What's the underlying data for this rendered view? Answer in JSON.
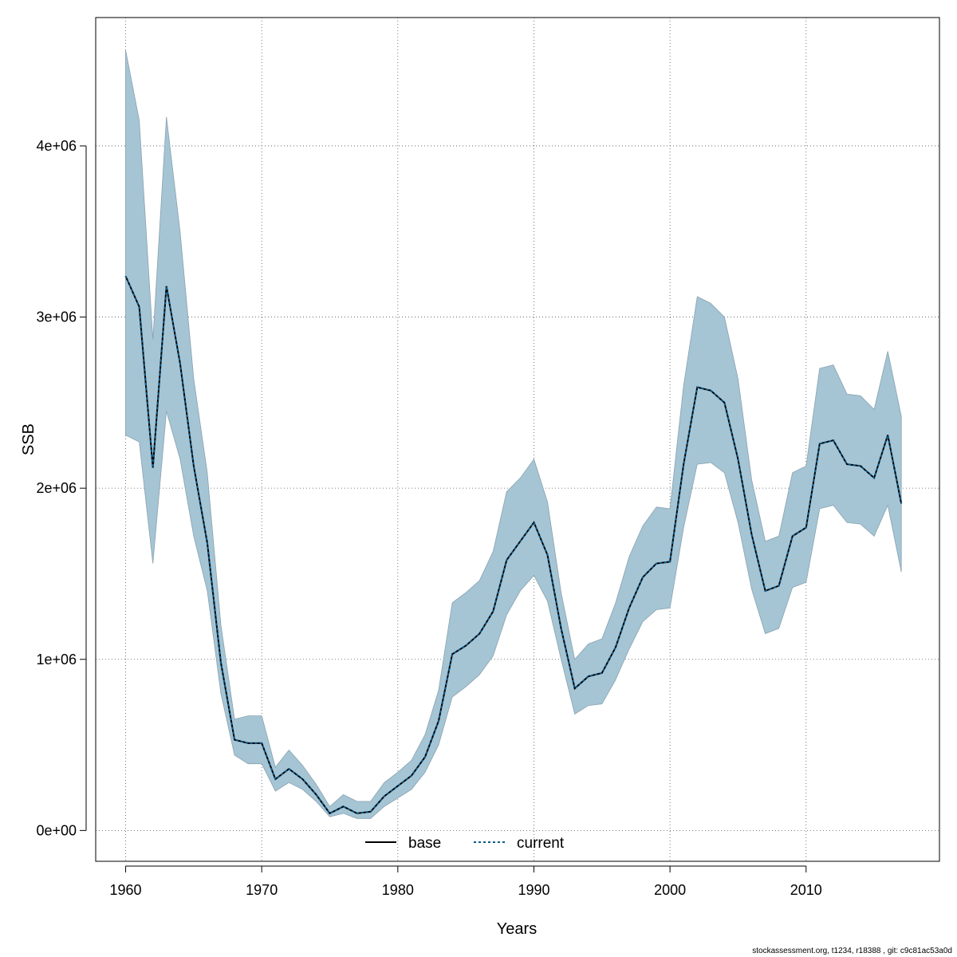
{
  "chart_data": {
    "type": "area",
    "title": "",
    "xlabel": "Years",
    "ylabel": "SSB",
    "xlim": [
      1957.8,
      1919.8
    ],
    "ylim": [
      -180000,
      4750000
    ],
    "x_ticks": [
      1960,
      1970,
      1980,
      1990,
      2000,
      2010
    ],
    "x_tick_labels": [
      "1960",
      "1970",
      "1980",
      "1990",
      "2000",
      "2010"
    ],
    "y_ticks": [
      0,
      1000000,
      2000000,
      3000000,
      4000000
    ],
    "y_tick_labels": [
      "0e+00",
      "1e+06",
      "2e+06",
      "3e+06",
      "4e+06"
    ],
    "grid": true,
    "legend_position": "bottom-center",
    "band_color": "#a5c4d4",
    "band_edge_color": "#8aa3b0",
    "x": [
      1960,
      1961,
      1962,
      1963,
      1964,
      1965,
      1966,
      1967,
      1968,
      1969,
      1970,
      1971,
      1972,
      1973,
      1974,
      1975,
      1976,
      1977,
      1978,
      1979,
      1980,
      1981,
      1982,
      1983,
      1984,
      1985,
      1986,
      1987,
      1988,
      1989,
      1990,
      1991,
      1992,
      1993,
      1994,
      1995,
      1996,
      1997,
      1998,
      1999,
      2000,
      2001,
      2002,
      2003,
      2004,
      2005,
      2006,
      2007,
      2008,
      2009,
      2010,
      2011,
      2012,
      2013,
      2014,
      2015,
      2016,
      2017
    ],
    "upper": [
      4560000,
      4150000,
      2870000,
      4170000,
      3500000,
      2640000,
      2090000,
      1200000,
      650000,
      670000,
      670000,
      370000,
      470000,
      380000,
      270000,
      140000,
      210000,
      170000,
      170000,
      280000,
      340000,
      410000,
      560000,
      820000,
      1330000,
      1390000,
      1460000,
      1630000,
      1980000,
      2060000,
      2170000,
      1920000,
      1390000,
      1000000,
      1090000,
      1120000,
      1330000,
      1600000,
      1780000,
      1890000,
      1880000,
      2600000,
      3120000,
      3080000,
      3000000,
      2640000,
      2050000,
      1690000,
      1720000,
      2090000,
      2130000,
      2700000,
      2720000,
      2550000,
      2540000,
      2460000,
      2800000,
      2420000
    ],
    "lower": [
      2310000,
      2270000,
      1560000,
      2450000,
      2170000,
      1720000,
      1400000,
      800000,
      440000,
      390000,
      390000,
      230000,
      280000,
      240000,
      170000,
      80000,
      100000,
      70000,
      70000,
      140000,
      190000,
      240000,
      340000,
      500000,
      780000,
      840000,
      910000,
      1020000,
      1260000,
      1400000,
      1490000,
      1340000,
      1000000,
      680000,
      730000,
      740000,
      880000,
      1060000,
      1220000,
      1290000,
      1300000,
      1770000,
      2140000,
      2150000,
      2090000,
      1800000,
      1410000,
      1150000,
      1180000,
      1420000,
      1450000,
      1880000,
      1900000,
      1800000,
      1790000,
      1720000,
      1900000,
      1510000
    ],
    "series": [
      {
        "name": "base",
        "line_style": "solid",
        "color": "#000000",
        "values": [
          3240000,
          3060000,
          2120000,
          3180000,
          2730000,
          2130000,
          1680000,
          980000,
          530000,
          510000,
          510000,
          300000,
          360000,
          300000,
          210000,
          100000,
          140000,
          100000,
          110000,
          200000,
          260000,
          320000,
          430000,
          640000,
          1030000,
          1080000,
          1150000,
          1280000,
          1580000,
          1690000,
          1800000,
          1610000,
          1180000,
          830000,
          900000,
          920000,
          1070000,
          1300000,
          1480000,
          1560000,
          1570000,
          2140000,
          2590000,
          2570000,
          2500000,
          2170000,
          1730000,
          1400000,
          1430000,
          1720000,
          1770000,
          2260000,
          2280000,
          2140000,
          2130000,
          2060000,
          2310000,
          1910000
        ]
      },
      {
        "name": "current",
        "line_style": "dotted",
        "color": "#0b5a8a",
        "values": [
          3240000,
          3060000,
          2120000,
          3180000,
          2730000,
          2130000,
          1680000,
          980000,
          530000,
          510000,
          510000,
          300000,
          360000,
          300000,
          210000,
          100000,
          140000,
          100000,
          110000,
          200000,
          260000,
          320000,
          430000,
          640000,
          1030000,
          1080000,
          1150000,
          1280000,
          1580000,
          1690000,
          1800000,
          1610000,
          1180000,
          830000,
          900000,
          920000,
          1070000,
          1300000,
          1480000,
          1560000,
          1570000,
          2140000,
          2590000,
          2570000,
          2500000,
          2170000,
          1730000,
          1400000,
          1430000,
          1720000,
          1770000,
          2260000,
          2280000,
          2140000,
          2130000,
          2060000,
          2310000,
          1910000
        ]
      }
    ]
  },
  "footnote": "stockassessment.org, t1234, r18388 , git: c9c81ac53a0d"
}
